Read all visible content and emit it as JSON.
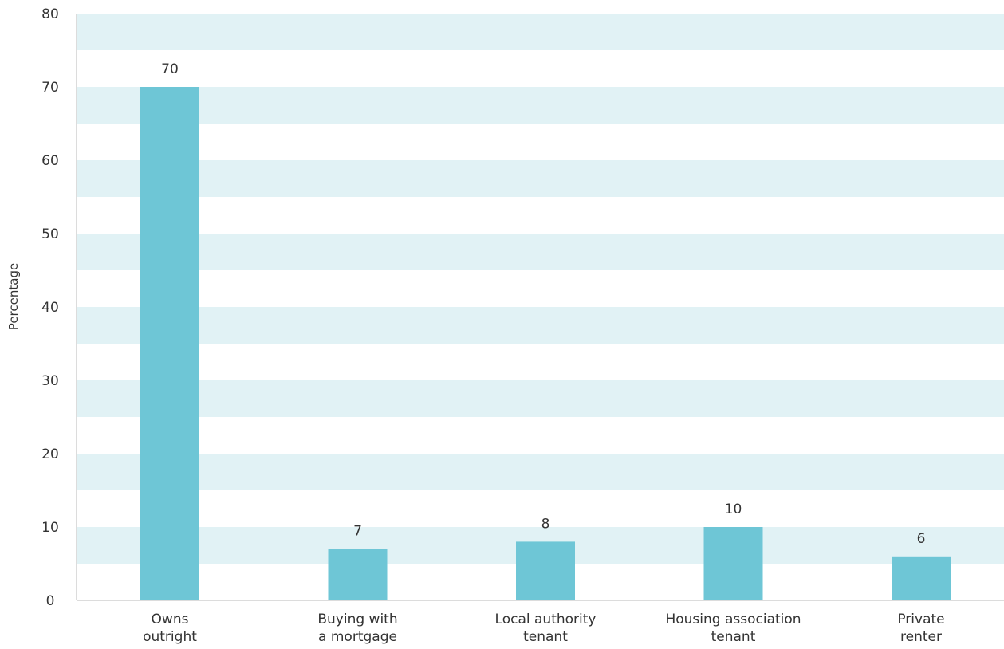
{
  "chart_data": {
    "type": "bar",
    "title": "",
    "xlabel": "",
    "ylabel": "Percentage",
    "ylim": [
      0,
      80
    ],
    "yticks": [
      0,
      10,
      20,
      30,
      40,
      50,
      60,
      70,
      80
    ],
    "categories": [
      [
        "Owns",
        "outright"
      ],
      [
        "Buying with",
        "a mortgage"
      ],
      [
        "Local authority",
        "tenant"
      ],
      [
        "Housing association",
        "tenant"
      ],
      [
        "Private",
        "renter"
      ]
    ],
    "values": [
      70,
      7,
      8,
      10,
      6
    ],
    "data_labels": [
      "70",
      "7",
      "8",
      "10",
      "6"
    ],
    "grid": "horizontal bands",
    "legend": "none",
    "colors": {
      "bar": "#6ec6d6",
      "band": "#e1f2f5",
      "axis": "#b8b8b8",
      "text": "#333333"
    }
  }
}
